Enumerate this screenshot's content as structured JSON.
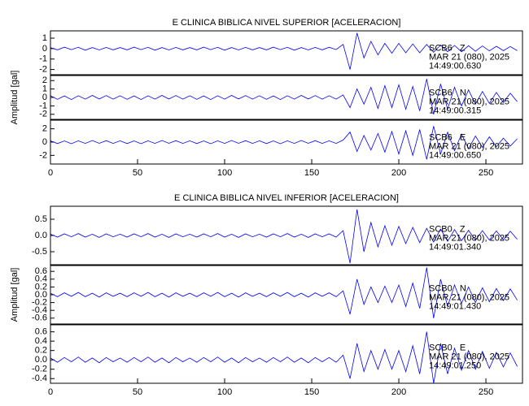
{
  "chart_data": [
    {
      "type": "line",
      "title": "E CLINICA BIBLICA NIVEL SUPERIOR [ACELERACION]",
      "ylabel": "Amplitud [gal]",
      "color": "#0000ff",
      "xlim": [
        0,
        271
      ],
      "xticks": [
        0,
        50,
        100,
        150,
        200,
        250
      ],
      "x": [
        0,
        4,
        8,
        12,
        16,
        20,
        24,
        28,
        32,
        36,
        40,
        44,
        48,
        52,
        56,
        60,
        64,
        68,
        72,
        76,
        80,
        84,
        88,
        92,
        96,
        100,
        104,
        108,
        112,
        116,
        120,
        124,
        128,
        132,
        136,
        140,
        144,
        148,
        152,
        156,
        160,
        164,
        168,
        172,
        176,
        180,
        184,
        188,
        192,
        196,
        200,
        204,
        208,
        212,
        216,
        220,
        224,
        228,
        232,
        236,
        240,
        244,
        248,
        252,
        256,
        260,
        264,
        268
      ],
      "panels": [
        {
          "ylim": [
            -2.5,
            1.7
          ],
          "yticks": [
            -2,
            -1,
            0,
            1
          ],
          "station": "SCB6   Z",
          "date": "MAR 21 (080), 2025",
          "time": "14:49:00.630",
          "values": [
            0.1,
            -0.12,
            0.14,
            -0.1,
            0.12,
            -0.15,
            0.1,
            -0.13,
            0.11,
            -0.12,
            0.1,
            -0.12,
            0.14,
            -0.1,
            0.12,
            -0.15,
            0.1,
            -0.13,
            0.11,
            -0.12,
            0.1,
            -0.12,
            0.14,
            -0.1,
            0.12,
            -0.15,
            0.1,
            -0.13,
            0.11,
            -0.12,
            0.1,
            -0.12,
            0.14,
            -0.1,
            0.12,
            -0.15,
            0.1,
            -0.13,
            0.11,
            -0.12,
            0.13,
            -0.1,
            0.4,
            -2.0,
            1.5,
            -0.9,
            0.7,
            -0.6,
            0.5,
            -0.45,
            0.5,
            -0.4,
            0.45,
            -0.4,
            0.4,
            -0.35,
            0.35,
            -0.3,
            0.3,
            -0.3,
            0.28,
            -0.25,
            0.25,
            -0.22,
            0.22,
            -0.2,
            0.2,
            -0.2
          ]
        },
        {
          "ylim": [
            -2.6,
            2.6
          ],
          "yticks": [
            -2,
            -1,
            0,
            1,
            2
          ],
          "station": "SCB6   N",
          "date": "MAR 21 (080), 2025",
          "time": "14:49:00.315",
          "values": [
            0.2,
            -0.22,
            0.18,
            -0.25,
            0.2,
            -0.2,
            0.24,
            -0.18,
            0.22,
            -0.2,
            0.2,
            -0.22,
            0.18,
            -0.25,
            0.2,
            -0.2,
            0.24,
            -0.18,
            0.22,
            -0.2,
            0.2,
            -0.22,
            0.18,
            -0.25,
            0.2,
            -0.2,
            0.24,
            -0.18,
            0.22,
            -0.2,
            0.2,
            -0.22,
            0.18,
            -0.25,
            0.2,
            -0.2,
            0.24,
            -0.18,
            0.22,
            -0.2,
            0.2,
            -0.2,
            0.3,
            -1.2,
            1.0,
            -0.8,
            1.2,
            -1.3,
            1.4,
            -1.2,
            1.5,
            -1.4,
            1.3,
            -1.6,
            2.2,
            -2.0,
            1.6,
            -1.4,
            1.2,
            -1.0,
            0.9,
            -0.8,
            0.7,
            -0.7,
            0.6,
            -0.6,
            0.5,
            -0.5
          ]
        },
        {
          "ylim": [
            -3.3,
            3.3
          ],
          "yticks": [
            -2,
            0,
            2
          ],
          "station": "SCB6   E",
          "date": "MAR 21 (080), 2025",
          "time": "14:49:00.650",
          "values": [
            0.2,
            -0.22,
            0.18,
            -0.25,
            0.2,
            -0.2,
            0.24,
            -0.18,
            0.22,
            -0.2,
            0.2,
            -0.22,
            0.18,
            -0.25,
            0.2,
            -0.2,
            0.24,
            -0.18,
            0.22,
            -0.2,
            0.2,
            -0.22,
            0.18,
            -0.25,
            0.2,
            -0.2,
            0.24,
            -0.18,
            0.22,
            -0.2,
            0.2,
            -0.22,
            0.18,
            -0.25,
            0.2,
            -0.2,
            0.24,
            -0.18,
            0.22,
            -0.2,
            0.2,
            -0.2,
            0.3,
            1.5,
            -1.4,
            1.0,
            -1.2,
            1.3,
            -1.5,
            1.6,
            -1.8,
            1.7,
            -2.0,
            1.9,
            -2.6,
            2.4,
            -1.8,
            1.5,
            -1.3,
            1.2,
            -1.0,
            0.9,
            -0.8,
            0.8,
            -0.7,
            0.6,
            -0.6,
            0.5
          ]
        }
      ]
    },
    {
      "type": "line",
      "title": "E CLINICA BIBLICA NIVEL INFERIOR [ACELERACION]",
      "ylabel": "Amplitud [gal]",
      "color": "#0000ff",
      "xlim": [
        0,
        271
      ],
      "xticks": [
        0,
        50,
        100,
        150,
        200,
        250
      ],
      "x": [
        0,
        4,
        8,
        12,
        16,
        20,
        24,
        28,
        32,
        36,
        40,
        44,
        48,
        52,
        56,
        60,
        64,
        68,
        72,
        76,
        80,
        84,
        88,
        92,
        96,
        100,
        104,
        108,
        112,
        116,
        120,
        124,
        128,
        132,
        136,
        140,
        144,
        148,
        152,
        156,
        160,
        164,
        168,
        172,
        176,
        180,
        184,
        188,
        192,
        196,
        200,
        204,
        208,
        212,
        216,
        220,
        224,
        228,
        232,
        236,
        240,
        244,
        248,
        252,
        256,
        260,
        264,
        268
      ],
      "panels": [
        {
          "ylim": [
            -0.9,
            0.9
          ],
          "yticks": [
            -0.5,
            {
              "value": 0,
              "label": "0.0"
            },
            0.5
          ],
          "station": "SCB0   Z",
          "date": "MAR 21 (080), 2025",
          "time": "14:49:01.340",
          "values": [
            0.04,
            -0.05,
            0.05,
            -0.04,
            0.06,
            -0.05,
            0.04,
            -0.06,
            0.05,
            -0.04,
            0.04,
            -0.05,
            0.05,
            -0.04,
            0.06,
            -0.05,
            0.04,
            -0.06,
            0.05,
            -0.04,
            0.04,
            -0.05,
            0.05,
            -0.04,
            0.06,
            -0.05,
            0.04,
            -0.06,
            0.05,
            -0.04,
            0.04,
            -0.05,
            0.05,
            -0.04,
            0.06,
            -0.05,
            0.04,
            -0.06,
            0.05,
            -0.04,
            0.05,
            -0.05,
            0.15,
            -0.85,
            0.8,
            -0.5,
            0.4,
            -0.35,
            0.3,
            -0.3,
            0.28,
            -0.25,
            0.25,
            -0.22,
            0.22,
            -0.2,
            0.2,
            -0.18,
            0.18,
            -0.16,
            0.16,
            -0.15,
            0.15,
            -0.14,
            0.14,
            -0.13,
            0.13,
            -0.12
          ]
        },
        {
          "ylim": [
            -0.75,
            0.75
          ],
          "yticks": [
            -0.6,
            -0.4,
            -0.2,
            {
              "value": 0,
              "label": "0.0"
            },
            0.2,
            0.4,
            0.6
          ],
          "station": "SCB0   N",
          "date": "MAR 21 (080), 2025",
          "time": "14:49:01.430",
          "values": [
            0.04,
            -0.05,
            0.05,
            -0.04,
            0.06,
            -0.05,
            0.04,
            -0.06,
            0.05,
            -0.04,
            0.04,
            -0.05,
            0.05,
            -0.04,
            0.06,
            -0.05,
            0.04,
            -0.06,
            0.05,
            -0.04,
            0.04,
            -0.05,
            0.05,
            -0.04,
            0.06,
            -0.05,
            0.04,
            -0.06,
            0.05,
            -0.04,
            0.04,
            -0.05,
            0.05,
            -0.04,
            0.06,
            -0.05,
            0.04,
            -0.06,
            0.05,
            -0.04,
            0.05,
            -0.05,
            0.1,
            -0.5,
            0.4,
            -0.25,
            0.2,
            -0.2,
            0.22,
            -0.2,
            0.25,
            -0.3,
            0.3,
            -0.35,
            0.7,
            -0.6,
            0.4,
            -0.3,
            0.25,
            -0.22,
            0.2,
            -0.2,
            0.18,
            -0.18,
            0.16,
            -0.15,
            0.15,
            -0.14
          ]
        },
        {
          "ylim": [
            -0.5,
            0.75
          ],
          "yticks": [
            -0.4,
            -0.2,
            {
              "value": 0,
              "label": "0.0"
            },
            0.2,
            0.4,
            0.6
          ],
          "station": "SCB0   E",
          "date": "MAR 21 (080), 2025",
          "time": "14:49:01.250",
          "values": [
            0.04,
            -0.05,
            0.05,
            -0.04,
            0.06,
            -0.05,
            0.04,
            -0.06,
            0.05,
            -0.04,
            0.04,
            -0.05,
            0.05,
            -0.04,
            0.06,
            -0.05,
            0.04,
            -0.06,
            0.05,
            -0.04,
            0.04,
            -0.05,
            0.05,
            -0.04,
            0.06,
            -0.05,
            0.04,
            -0.06,
            0.05,
            -0.04,
            0.04,
            -0.05,
            0.05,
            -0.04,
            0.06,
            -0.05,
            0.04,
            -0.06,
            0.05,
            -0.04,
            0.05,
            -0.05,
            0.1,
            -0.4,
            0.35,
            -0.25,
            0.2,
            -0.2,
            0.22,
            -0.2,
            0.2,
            -0.25,
            0.3,
            -0.3,
            0.6,
            -0.5,
            0.35,
            -0.3,
            0.25,
            -0.22,
            0.2,
            -0.2,
            0.18,
            -0.18,
            0.16,
            -0.15,
            0.15,
            -0.14
          ]
        }
      ]
    }
  ]
}
